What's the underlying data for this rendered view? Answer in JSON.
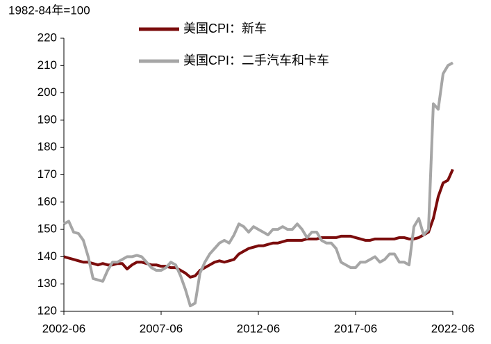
{
  "chart_data": {
    "type": "line",
    "y_label": "1982-84年=100",
    "x": [
      "2002-06",
      "2002-09",
      "2002-12",
      "2003-03",
      "2003-06",
      "2003-09",
      "2003-12",
      "2004-03",
      "2004-06",
      "2004-09",
      "2004-12",
      "2005-03",
      "2005-06",
      "2005-09",
      "2005-12",
      "2006-03",
      "2006-06",
      "2006-09",
      "2006-12",
      "2007-03",
      "2007-06",
      "2007-09",
      "2007-12",
      "2008-03",
      "2008-06",
      "2008-09",
      "2008-12",
      "2009-03",
      "2009-06",
      "2009-09",
      "2009-12",
      "2010-03",
      "2010-06",
      "2010-09",
      "2010-12",
      "2011-03",
      "2011-06",
      "2011-09",
      "2011-12",
      "2012-03",
      "2012-06",
      "2012-09",
      "2012-12",
      "2013-03",
      "2013-06",
      "2013-09",
      "2013-12",
      "2014-03",
      "2014-06",
      "2014-09",
      "2014-12",
      "2015-03",
      "2015-06",
      "2015-09",
      "2015-12",
      "2016-03",
      "2016-06",
      "2016-09",
      "2016-12",
      "2017-03",
      "2017-06",
      "2017-09",
      "2017-12",
      "2018-03",
      "2018-06",
      "2018-09",
      "2018-12",
      "2019-03",
      "2019-06",
      "2019-09",
      "2019-12",
      "2020-03",
      "2020-06",
      "2020-09",
      "2020-12",
      "2021-03",
      "2021-06",
      "2021-09",
      "2021-12",
      "2022-03",
      "2022-06"
    ],
    "series": [
      {
        "name": "美国CPI：新车",
        "color": "#7b0c0c",
        "width": 4,
        "values": [
          140,
          139.5,
          139,
          138.5,
          138,
          138,
          137.5,
          137,
          137.5,
          137,
          137,
          137.5,
          137.5,
          135.5,
          137,
          138,
          138,
          137.5,
          137,
          137,
          136.5,
          136.5,
          136,
          136,
          135,
          134,
          132.5,
          133,
          135,
          136,
          137,
          138,
          138.5,
          138,
          138.5,
          139,
          141,
          142,
          143,
          143.5,
          144,
          144,
          144.5,
          145,
          145,
          145.5,
          146,
          146,
          146,
          146,
          146.5,
          146.5,
          146.5,
          147,
          147,
          147,
          147,
          147.5,
          147.5,
          147.5,
          147,
          146.5,
          146,
          146,
          146.5,
          146.5,
          146.5,
          146.5,
          146.5,
          147,
          147,
          146.5,
          146.5,
          147,
          148,
          149,
          154,
          162,
          167,
          168,
          172
        ]
      },
      {
        "name": "美国CPI：二手汽车和卡车",
        "color": "#a6a6a6",
        "width": 4,
        "values": [
          152,
          153,
          149,
          148.5,
          146,
          140,
          132,
          131.5,
          131,
          135,
          138,
          138,
          139,
          140,
          140,
          140.5,
          140,
          138,
          136,
          135,
          135,
          136,
          138,
          137,
          133,
          128,
          122,
          123,
          134,
          138,
          141,
          143,
          145,
          146,
          145,
          148,
          152,
          151,
          149,
          151,
          150,
          149,
          148,
          150,
          150,
          151,
          150,
          150,
          152,
          150,
          147,
          149,
          149,
          146,
          145,
          145,
          143,
          138,
          137,
          136,
          136,
          138,
          138,
          139,
          140,
          138,
          139,
          141,
          141,
          138,
          138,
          137,
          151,
          154,
          148,
          150,
          196,
          194,
          207,
          210,
          211
        ]
      }
    ],
    "ylim": [
      120,
      220
    ],
    "yticks": [
      120,
      130,
      140,
      150,
      160,
      170,
      180,
      190,
      200,
      210,
      220
    ],
    "grid": false,
    "legend": "top"
  }
}
